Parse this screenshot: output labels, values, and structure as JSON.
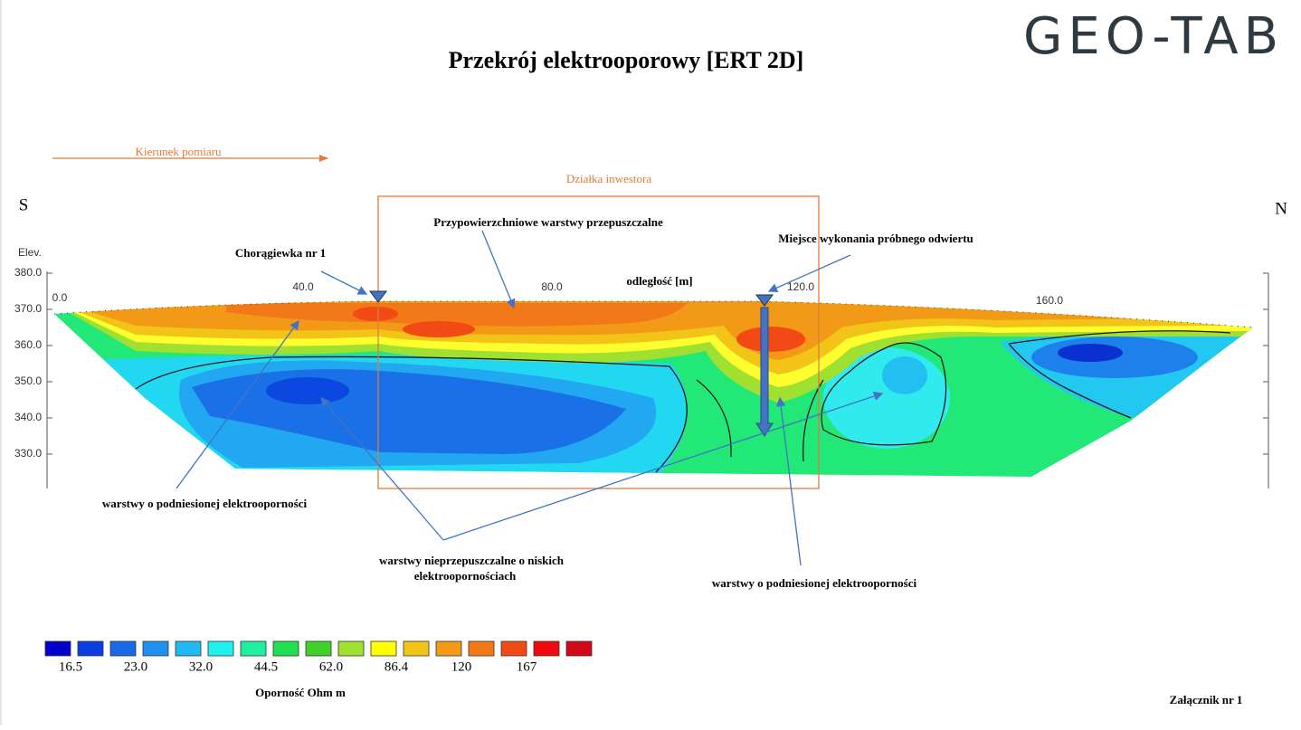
{
  "header": {
    "title": "Przekrój elektrooporowy [ERT 2D]",
    "logo": "GEO-TAB"
  },
  "section": {
    "direction": "Kierunek pomiaru",
    "plot_area": "Działka inwestora",
    "south": "S",
    "north": "N",
    "elev_label": "Elev.",
    "elev_ticks": [
      "380.0",
      "370.0",
      "360.0",
      "350.0",
      "340.0",
      "330.0"
    ],
    "distance_ticks": [
      "0.0",
      "40.0",
      "80.0",
      "120.0",
      "160.0"
    ],
    "distance_label": "odległość [m]"
  },
  "annotations": {
    "flag": "Chorągiewka nr 1",
    "surface_layers": "Przypowierzchniowe warstwy przepuszczalne",
    "borehole": "Miejsce wykonania próbnego odwiertu",
    "high_left": "warstwy o podniesionej elektrooporności",
    "low_resistivity": [
      "warstwy nieprzepuszczalne o niskich",
      "elektrooporno­ściach"
    ],
    "high_right": "warstwy o podniesionej elektrooporności"
  },
  "legend": {
    "colors": [
      "#0000cc",
      "#0a3ee0",
      "#1a6ae8",
      "#1e90f0",
      "#22b8f2",
      "#20f0f0",
      "#20eea0",
      "#20e050",
      "#40d028",
      "#a0e030",
      "#ffff00",
      "#f2c418",
      "#f29a18",
      "#f27818",
      "#f24a14",
      "#f00a10",
      "#d00a18"
    ],
    "labels": [
      "16.5",
      "23.0",
      "32.0",
      "44.5",
      "62.0",
      "86.4",
      "120",
      "167"
    ],
    "title": "Oporność Ohm m"
  },
  "footer": {
    "attachment": "Załącznik nr 1"
  }
}
